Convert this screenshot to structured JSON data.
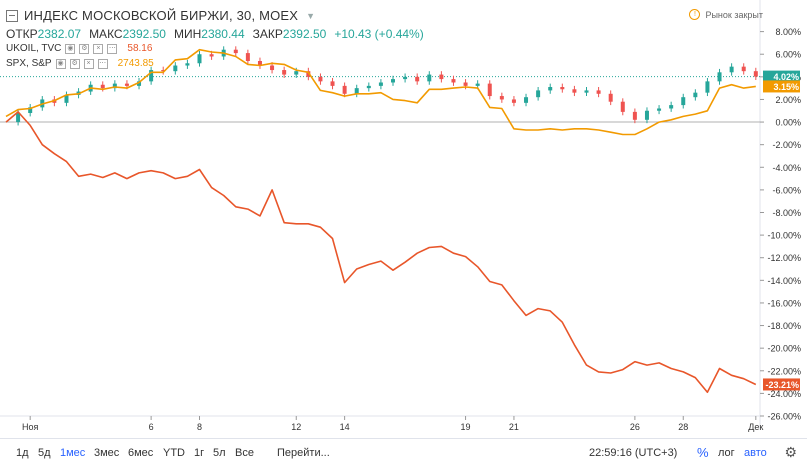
{
  "header": {
    "title": "ИНДЕКС МОСКОВСКОЙ БИРЖИ, 30, MOEX",
    "market_status": "Рынок закрыт",
    "ohlc": [
      {
        "label": "ОТКР",
        "value": "2382.07"
      },
      {
        "label": "МАКС",
        "value": "2392.50"
      },
      {
        "label": "МИН",
        "value": "2380.44"
      },
      {
        "label": "ЗАКР",
        "value": "2392.50"
      }
    ],
    "change": "+10.43 (+0.44%)"
  },
  "legend": [
    {
      "symbol": "UKOIL, TVC",
      "value": "58.16",
      "color": "#e8562a"
    },
    {
      "symbol": "SPX, S&P",
      "value": "2743.85",
      "color": "#f29a00"
    }
  ],
  "toolbar": {
    "ranges": [
      "1д",
      "5д",
      "1мес",
      "3мес",
      "6мес",
      "YTD",
      "1г",
      "5л",
      "Все"
    ],
    "active_range": "1мес",
    "goto": "Перейти...",
    "time": "22:59:16 (UTC+3)",
    "percent": "%",
    "log": "лог",
    "auto": "авто"
  },
  "chart_data": {
    "type": "line",
    "y_unit": "%",
    "ylim": [
      -26,
      10
    ],
    "yticks": [
      "8.00%",
      "6.00%",
      "4.00%",
      "2.00%",
      "0.00%",
      "-2.00%",
      "-4.00%",
      "-6.00%",
      "-8.00%",
      "-10.00%",
      "-12.00%",
      "-14.00%",
      "-16.00%",
      "-18.00%",
      "-20.00%",
      "-22.00%",
      "-24.00%",
      "-26.00%"
    ],
    "x_tick_labels": [
      "Ноя",
      "6",
      "8",
      "12",
      "14",
      "19",
      "21",
      "26",
      "28",
      "Дек"
    ],
    "x_ticks": [
      1,
      6,
      8,
      12,
      14,
      19,
      21,
      26,
      28,
      31
    ],
    "xlim": [
      0,
      32
    ],
    "last_values": [
      {
        "series": "ИНДЕКС МОСКОВСКОЙ БИРЖИ",
        "label": "4.02%",
        "value": 4.02,
        "color": "#26a69a"
      },
      {
        "series": "SPX, S&P",
        "label": "3.15%",
        "value": 3.15,
        "color": "#f29a00"
      },
      {
        "series": "UKOIL, TVC",
        "label": "-23.21%",
        "value": -23.21,
        "color": "#e8562a"
      }
    ],
    "series": [
      {
        "name": "ИНДЕКС МОСКОВСКОЙ БИРЖИ",
        "kind": "candles",
        "color_up": "#26a69a",
        "color_down": "#ef5350",
        "x": [
          0,
          0.5,
          1,
          1.5,
          2,
          2.5,
          3,
          3.5,
          4,
          4.5,
          5,
          5.5,
          6,
          6.5,
          7,
          7.5,
          8,
          8.5,
          9,
          9.5,
          10,
          10.5,
          11,
          11.5,
          12,
          12.5,
          13,
          13.5,
          14,
          14.5,
          15,
          15.5,
          16,
          16.5,
          17,
          17.5,
          18,
          18.5,
          19,
          19.5,
          20,
          20.5,
          21,
          21.5,
          22,
          22.5,
          23,
          23.5,
          24,
          24.5,
          25,
          25.5,
          26,
          26.5,
          27,
          27.5,
          28,
          28.5,
          29,
          29.5,
          30,
          30.5,
          31
        ],
        "values": [
          0.0,
          0.8,
          1.3,
          2.0,
          1.7,
          2.4,
          2.7,
          3.3,
          3.0,
          3.4,
          3.2,
          3.6,
          4.6,
          4.5,
          5.0,
          5.2,
          6.0,
          5.8,
          6.4,
          6.1,
          5.4,
          5.0,
          4.6,
          4.2,
          4.5,
          4.0,
          3.6,
          3.2,
          2.5,
          3.0,
          3.2,
          3.5,
          3.8,
          4.0,
          3.6,
          4.2,
          3.8,
          3.5,
          3.2,
          3.4,
          2.3,
          2.0,
          1.7,
          2.2,
          2.8,
          3.1,
          2.9,
          2.6,
          2.8,
          2.5,
          1.8,
          0.9,
          0.2,
          1.0,
          1.2,
          1.5,
          2.2,
          2.6,
          3.6,
          4.4,
          4.9,
          4.5,
          4.02
        ]
      },
      {
        "name": "SPX, S&P",
        "kind": "line",
        "color": "#f29a00",
        "x": [
          0,
          0.5,
          1,
          1.5,
          2,
          2.5,
          3,
          3.5,
          4,
          4.5,
          5,
          5.5,
          6,
          6.5,
          7,
          7.5,
          8,
          8.5,
          9,
          9.5,
          10,
          10.5,
          11,
          11.5,
          12,
          12.5,
          13,
          13.5,
          14,
          14.5,
          15,
          15.5,
          16,
          16.5,
          17,
          17.5,
          18,
          18.5,
          19,
          19.5,
          20,
          20.5,
          21,
          21.5,
          22,
          22.5,
          23,
          23.5,
          24,
          24.5,
          25,
          25.5,
          26,
          26.5,
          27,
          27.5,
          28,
          28.5,
          29,
          29.5,
          30,
          30.5,
          31
        ],
        "values": [
          0.5,
          1.1,
          1.2,
          1.6,
          1.9,
          2.4,
          2.5,
          3.0,
          2.9,
          3.1,
          3.0,
          3.5,
          4.4,
          4.4,
          5.5,
          5.6,
          6.4,
          6.2,
          6.1,
          5.8,
          5.1,
          5.0,
          5.2,
          5.1,
          4.6,
          4.4,
          2.8,
          2.6,
          2.3,
          2.5,
          2.5,
          2.6,
          2.0,
          1.9,
          1.7,
          2.9,
          2.9,
          3.0,
          3.1,
          3.0,
          1.3,
          1.2,
          -0.6,
          -0.7,
          -0.7,
          -0.6,
          -0.7,
          -0.6,
          -0.6,
          -0.7,
          -0.9,
          -1.1,
          -1.1,
          -0.6,
          0.0,
          0.2,
          0.5,
          0.7,
          1.0,
          3.0,
          3.3,
          3.0,
          3.15
        ]
      },
      {
        "name": "UKOIL, TVC",
        "kind": "line",
        "color": "#e8562a",
        "x": [
          0,
          0.5,
          1,
          1.5,
          2,
          2.5,
          3,
          3.5,
          4,
          4.5,
          5,
          5.5,
          6,
          6.5,
          7,
          7.5,
          8,
          8.5,
          9,
          9.5,
          10,
          10.5,
          11,
          11.5,
          12,
          12.5,
          13,
          13.5,
          14,
          14.5,
          15,
          15.5,
          16,
          16.5,
          17,
          17.5,
          18,
          18.5,
          19,
          19.5,
          20,
          20.5,
          21,
          21.5,
          22,
          22.5,
          23,
          23.5,
          24,
          24.5,
          25,
          25.5,
          26,
          26.5,
          27,
          27.5,
          28,
          28.5,
          29,
          29.5,
          30,
          30.5,
          31
        ],
        "values": [
          0.0,
          0.9,
          -0.3,
          -2.0,
          -2.8,
          -3.5,
          -4.8,
          -4.6,
          -4.9,
          -4.5,
          -5.0,
          -4.5,
          -4.3,
          -4.5,
          -5.0,
          -4.8,
          -4.2,
          -5.8,
          -6.5,
          -7.5,
          -7.7,
          -8.3,
          -6.0,
          -8.9,
          -9.0,
          -9.0,
          -9.3,
          -10.3,
          -14.2,
          -13.0,
          -12.6,
          -12.3,
          -13.1,
          -12.4,
          -11.6,
          -11.1,
          -11.0,
          -11.6,
          -11.9,
          -12.8,
          -14.1,
          -14.4,
          -15.8,
          -17.1,
          -16.5,
          -16.7,
          -17.7,
          -19.7,
          -21.5,
          -22.1,
          -22.2,
          -21.9,
          -21.2,
          -21.5,
          -21.3,
          -21.8,
          -22.1,
          -22.6,
          -23.9,
          -21.8,
          -22.4,
          -22.7,
          -23.21
        ]
      }
    ]
  }
}
